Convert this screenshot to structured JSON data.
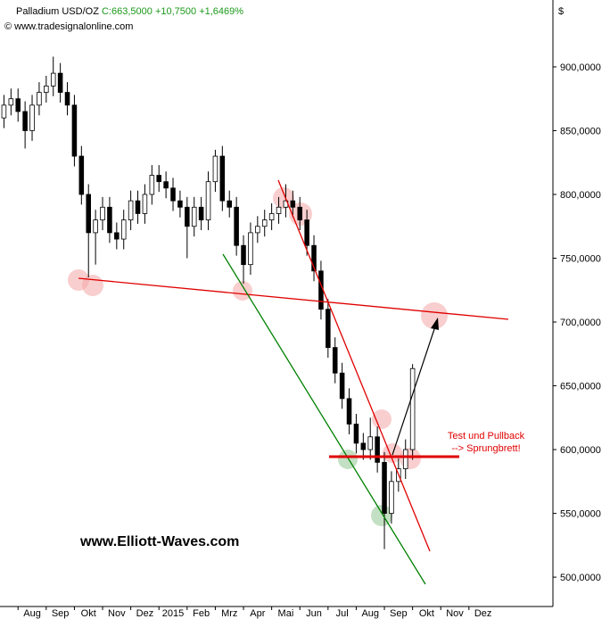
{
  "chart_data": {
    "type": "candlestick",
    "title": "Palladium USD/OZ",
    "close_label": "C:663,5000",
    "change_label": "+10,7500",
    "change_pct_label": "+1,6469%",
    "source": "© www.tradesignalonline.com",
    "currency": "$",
    "annotation": "Test und Pullback",
    "annotation2": "--> Sprungbrett!",
    "watermark": "www.Elliott-Waves.com",
    "x": [
      -1,
      -0.75,
      -0.5,
      -0.25,
      0,
      0.25,
      0.5,
      0.75,
      1,
      1.25,
      1.5,
      1.75,
      2,
      2.25,
      2.5,
      2.75,
      3,
      3.25,
      3.5,
      3.75,
      4,
      4.25,
      4.5,
      4.75,
      5,
      5.25,
      5.5,
      5.75,
      6,
      6.25,
      6.5,
      6.75,
      7,
      7.25,
      7.5,
      7.75,
      8,
      8.25,
      8.5,
      8.75,
      9,
      9.25,
      9.5,
      9.75,
      10,
      10.25,
      10.5,
      10.75,
      11,
      11.25,
      11.5,
      11.75,
      12,
      12.25,
      12.5,
      12.75,
      13,
      13.25,
      13.5
    ],
    "open": [
      860,
      870,
      875,
      865,
      850,
      870,
      880,
      885,
      895,
      880,
      870,
      830,
      800,
      770,
      780,
      790,
      770,
      765,
      780,
      795,
      785,
      800,
      815,
      810,
      805,
      795,
      790,
      775,
      790,
      780,
      810,
      830,
      795,
      790,
      760,
      745,
      770,
      775,
      780,
      785,
      790,
      795,
      790,
      780,
      760,
      740,
      710,
      680,
      660,
      640,
      620,
      605,
      600,
      610,
      590,
      550,
      575,
      585,
      600
    ],
    "high": [
      878,
      883,
      883,
      873,
      878,
      888,
      893,
      908,
      903,
      888,
      878,
      838,
      808,
      788,
      798,
      798,
      778,
      788,
      803,
      803,
      808,
      823,
      823,
      818,
      813,
      803,
      798,
      798,
      798,
      818,
      835,
      838,
      803,
      798,
      768,
      778,
      783,
      788,
      793,
      798,
      808,
      803,
      798,
      788,
      768,
      748,
      718,
      688,
      668,
      648,
      628,
      613,
      625,
      618,
      598,
      583,
      593,
      608,
      667
    ],
    "low": [
      852,
      862,
      857,
      836,
      842,
      862,
      872,
      877,
      872,
      862,
      822,
      792,
      735,
      745,
      772,
      762,
      757,
      757,
      772,
      777,
      777,
      792,
      802,
      797,
      787,
      782,
      750,
      767,
      772,
      772,
      802,
      787,
      782,
      752,
      730,
      737,
      762,
      767,
      772,
      777,
      782,
      782,
      772,
      752,
      732,
      702,
      672,
      652,
      632,
      612,
      597,
      592,
      592,
      582,
      522,
      542,
      567,
      577,
      592
    ],
    "close": [
      870,
      875,
      865,
      850,
      870,
      880,
      885,
      895,
      880,
      870,
      830,
      800,
      770,
      780,
      790,
      770,
      765,
      780,
      795,
      785,
      800,
      815,
      810,
      805,
      795,
      790,
      775,
      790,
      780,
      810,
      830,
      795,
      790,
      760,
      745,
      770,
      775,
      780,
      785,
      790,
      795,
      790,
      780,
      760,
      740,
      710,
      680,
      660,
      640,
      620,
      605,
      600,
      610,
      590,
      550,
      575,
      585,
      600,
      663.5
    ],
    "xlim": [
      -1.14,
      18.48
    ],
    "xticks": [
      {
        "value": 0,
        "label": "Aug"
      },
      {
        "value": 1,
        "label": "Sep"
      },
      {
        "value": 2,
        "label": "Okt"
      },
      {
        "value": 3,
        "label": "Nov"
      },
      {
        "value": 4,
        "label": "Dez"
      },
      {
        "value": 5,
        "label": "2015"
      },
      {
        "value": 6,
        "label": "Feb"
      },
      {
        "value": 7,
        "label": "Mrz"
      },
      {
        "value": 8,
        "label": "Apr"
      },
      {
        "value": 9,
        "label": "Mai"
      },
      {
        "value": 10,
        "label": "Jun"
      },
      {
        "value": 11,
        "label": "Jul"
      },
      {
        "value": 12,
        "label": "Aug"
      },
      {
        "value": 13,
        "label": "Sep"
      },
      {
        "value": 14,
        "label": "Okt"
      },
      {
        "value": 15,
        "label": "Nov"
      },
      {
        "value": 16,
        "label": "Dez"
      }
    ],
    "ylim": [
      477,
      952.4
    ],
    "yticks": [
      {
        "value": 500,
        "label": "500,0000"
      },
      {
        "value": 550,
        "label": "550,0000"
      },
      {
        "value": 600,
        "label": "600,0000"
      },
      {
        "value": 650,
        "label": "650,0000"
      },
      {
        "value": 700,
        "label": "700,0000"
      },
      {
        "value": 750,
        "label": "750,0000"
      },
      {
        "value": 800,
        "label": "800,0000"
      },
      {
        "value": 850,
        "label": "850,0000"
      },
      {
        "value": 900,
        "label": "900,0000"
      }
    ],
    "up_color": "#ffffff",
    "down_color": "#000000"
  }
}
